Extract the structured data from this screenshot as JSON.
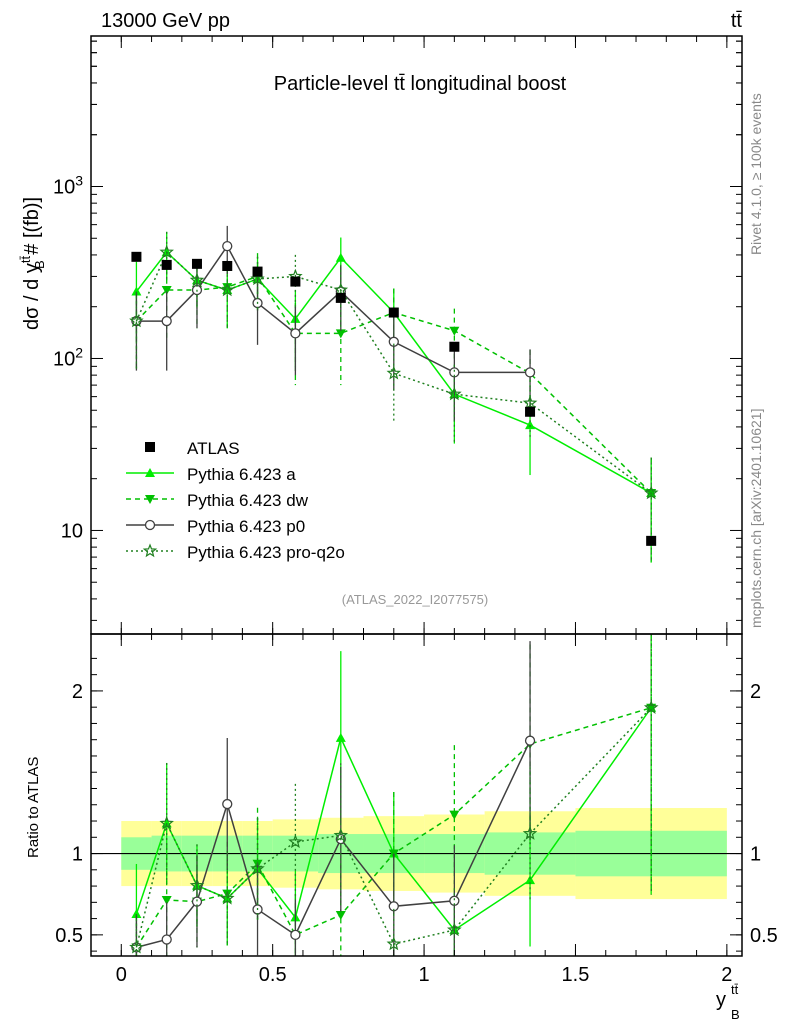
{
  "header": {
    "energy_label": "13000 GeV pp",
    "process_label": "tt̄",
    "right_label_top": "Rivet 4.1.0, ≥ 100k events",
    "right_label_bottom": "mcplots.cern.ch [arXiv:2401.10621]"
  },
  "chart_data": {
    "type": "line",
    "title": "Particle-level tt̄ longitudinal boost",
    "analysis_id": "(ATLAS_2022_I2077575)",
    "ylabel": "dσ / d y_B^tt̄ # [(fb)]",
    "ratio_ylabel": "Ratio to ATLAS",
    "xlabel": "y_B^tt̄",
    "xlim": [
      -0.1,
      2.05
    ],
    "ylim": [
      2.5,
      7500
    ],
    "yscale": "log",
    "ratio_ylim": [
      0.37,
      2.35
    ],
    "x_ticks": [
      "0",
      "0.5",
      "1",
      "1.5",
      "2"
    ],
    "x_tick_values": [
      0,
      0.5,
      1,
      1.5,
      2
    ],
    "y_ticks": [
      "10",
      "10²",
      "10³"
    ],
    "y_tick_values": [
      10,
      100,
      1000
    ],
    "ratio_ticks": [
      "0.5",
      "1",
      "2"
    ],
    "ratio_tick_values": [
      0.5,
      1,
      2
    ],
    "bin_edges": [
      0,
      0.1,
      0.2,
      0.3,
      0.4,
      0.5,
      0.65,
      0.8,
      1.0,
      1.2,
      1.5,
      2.0
    ],
    "x": [
      0.05,
      0.15,
      0.25,
      0.35,
      0.45,
      0.575,
      0.725,
      0.9,
      1.1,
      1.35,
      1.75
    ],
    "data": {
      "name": "ATLAS",
      "values": [
        390,
        350,
        355,
        345,
        320,
        280,
        225,
        185,
        117,
        49,
        8.7
      ],
      "band_inner": [
        0.1,
        0.11,
        0.11,
        0.11,
        0.11,
        0.11,
        0.12,
        0.12,
        0.12,
        0.13,
        0.14
      ],
      "band_outer": [
        0.2,
        0.2,
        0.2,
        0.2,
        0.2,
        0.21,
        0.22,
        0.23,
        0.24,
        0.26,
        0.28
      ]
    },
    "legend_position": "middle-left",
    "series": [
      {
        "name": "Pythia 6.423 a",
        "color": "#00ee00",
        "style": "solid",
        "marker": "triangle-up",
        "values": [
          245,
          415,
          285,
          250,
          290,
          170,
          385,
          185,
          62,
          41,
          16.5
        ],
        "errors": [
          120,
          130,
          90,
          100,
          100,
          80,
          120,
          70,
          30,
          20,
          10
        ]
      },
      {
        "name": "Pythia 6.423 dw",
        "color": "#00c000",
        "style": "dashed",
        "marker": "triangle-down",
        "values": [
          165,
          250,
          250,
          260,
          300,
          140,
          140,
          185,
          145,
          82,
          16.5
        ],
        "errors": [
          80,
          120,
          100,
          110,
          110,
          70,
          70,
          70,
          50,
          30,
          10
        ]
      },
      {
        "name": "Pythia 6.423 p0",
        "color": "#404040",
        "style": "solid",
        "marker": "circle-open",
        "values": [
          165,
          165,
          250,
          450,
          210,
          140,
          245,
          125,
          83,
          83,
          null
        ],
        "errors": [
          80,
          80,
          100,
          140,
          90,
          60,
          100,
          60,
          40,
          30,
          null
        ]
      },
      {
        "name": "Pythia 6.423 pro-q2o",
        "color": "#208020",
        "style": "dotted",
        "marker": "star",
        "values": [
          165,
          415,
          285,
          250,
          290,
          300,
          250,
          82,
          62,
          55,
          16.5
        ],
        "errors": [
          80,
          130,
          90,
          100,
          100,
          100,
          100,
          40,
          30,
          20,
          10
        ]
      }
    ]
  }
}
